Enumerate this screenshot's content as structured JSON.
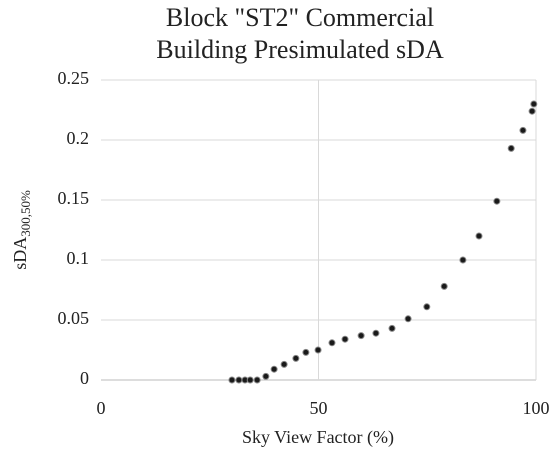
{
  "chart_data": {
    "type": "scatter",
    "title": [
      "Block \"ST2\" Commercial",
      "Building Presimulated sDA"
    ],
    "xlabel": "Sky View Factor (%)",
    "ylabel": {
      "text": "sDA",
      "subscript": "300,50%"
    },
    "x": [
      30.1,
      31.7,
      33.1,
      34.3,
      35.9,
      37.9,
      39.8,
      42.1,
      44.8,
      47.1,
      49.9,
      53.1,
      56.1,
      59.8,
      63.2,
      66.9,
      70.6,
      74.9,
      78.9,
      83.2,
      86.9,
      91.0,
      94.3,
      97.0,
      99.1,
      99.5
    ],
    "values": [
      0,
      0,
      0,
      0,
      0,
      0.003,
      0.009,
      0.013,
      0.018,
      0.023,
      0.025,
      0.031,
      0.034,
      0.037,
      0.039,
      0.043,
      0.051,
      0.061,
      0.078,
      0.1,
      0.12,
      0.149,
      0.193,
      0.208,
      0.224,
      0.23
    ],
    "color": "#1a1a1a",
    "xlim": [
      0,
      100
    ],
    "xticks": [
      0,
      50,
      100
    ],
    "ylim": [
      0,
      0.25
    ],
    "yticks": [
      0,
      0.05,
      0.1,
      0.15,
      0.2,
      0.25
    ],
    "grid": true
  }
}
